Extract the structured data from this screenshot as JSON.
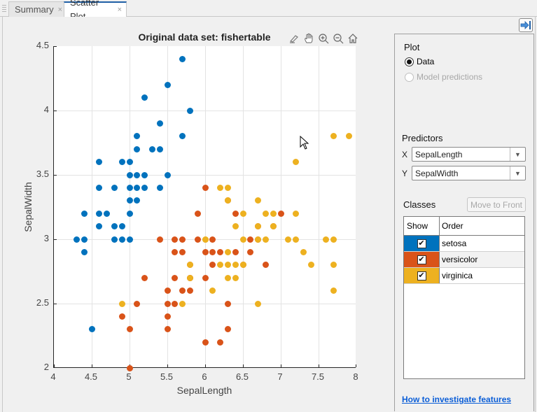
{
  "tabs": [
    {
      "label": "Summary",
      "active": false,
      "close": "×"
    },
    {
      "label": "Scatter Plot",
      "active": true,
      "close": "×"
    }
  ],
  "plot": {
    "title": "Original data set: fishertable",
    "toolbar": [
      "brush-icon",
      "pan-icon",
      "zoom-in-icon",
      "zoom-out-icon",
      "home-icon"
    ]
  },
  "panel": {
    "plot_section": {
      "title": "Plot",
      "options": [
        {
          "label": "Data",
          "selected": true,
          "enabled": true
        },
        {
          "label": "Model predictions",
          "selected": false,
          "enabled": false
        }
      ]
    },
    "predictors": {
      "title": "Predictors",
      "x_label": "X",
      "x_value": "SepalLength",
      "y_label": "Y",
      "y_value": "SepalWidth"
    },
    "classes": {
      "title": "Classes",
      "move_to_front": "Move to Front",
      "col_show": "Show",
      "col_order": "Order",
      "rows": [
        {
          "name": "setosa",
          "color": "#0072BD",
          "checked": true,
          "check": "✔"
        },
        {
          "name": "versicolor",
          "color": "#D95319",
          "checked": true,
          "check": "✔"
        },
        {
          "name": "virginica",
          "color": "#EDB120",
          "checked": true,
          "check": "✔"
        }
      ]
    },
    "help_link": "How to investigate features"
  },
  "chart_data": {
    "type": "scatter",
    "title": "Original data set: fishertable",
    "xlabel": "SepalLength",
    "ylabel": "SepalWidth",
    "xlim": [
      4,
      8
    ],
    "ylim": [
      2,
      4.5
    ],
    "xticks": [
      "4",
      "4.5",
      "5",
      "5.5",
      "6",
      "6.5",
      "7",
      "7.5",
      "8"
    ],
    "yticks": [
      "2",
      "2.5",
      "3",
      "3.5",
      "4",
      "4.5"
    ],
    "grid": true,
    "legend": "none (class table in side panel)",
    "series": [
      {
        "name": "setosa",
        "color": "#0072BD",
        "points": [
          [
            5.7,
            4.4
          ],
          [
            5.5,
            4.2
          ],
          [
            5.2,
            4.1
          ],
          [
            5.8,
            4.0
          ],
          [
            5.4,
            3.9
          ],
          [
            5.7,
            3.8
          ],
          [
            5.1,
            3.8
          ],
          [
            5.1,
            3.7
          ],
          [
            5.3,
            3.7
          ],
          [
            5.4,
            3.7
          ],
          [
            4.6,
            3.6
          ],
          [
            5.0,
            3.6
          ],
          [
            4.9,
            3.6
          ],
          [
            5.0,
            3.5
          ],
          [
            5.2,
            3.5
          ],
          [
            5.1,
            3.5
          ],
          [
            5.5,
            3.5
          ],
          [
            4.6,
            3.4
          ],
          [
            4.8,
            3.4
          ],
          [
            5.0,
            3.4
          ],
          [
            5.1,
            3.4
          ],
          [
            5.2,
            3.4
          ],
          [
            5.4,
            3.4
          ],
          [
            5.0,
            3.3
          ],
          [
            5.1,
            3.3
          ],
          [
            4.4,
            3.2
          ],
          [
            4.6,
            3.2
          ],
          [
            4.7,
            3.2
          ],
          [
            5.0,
            3.2
          ],
          [
            4.6,
            3.1
          ],
          [
            4.8,
            3.1
          ],
          [
            4.9,
            3.1
          ],
          [
            4.3,
            3.0
          ],
          [
            4.4,
            3.0
          ],
          [
            4.8,
            3.0
          ],
          [
            4.9,
            3.0
          ],
          [
            5.0,
            3.0
          ],
          [
            4.4,
            2.9
          ],
          [
            4.5,
            2.3
          ]
        ]
      },
      {
        "name": "versicolor",
        "color": "#D95319",
        "points": [
          [
            6.0,
            3.4
          ],
          [
            6.3,
            3.3
          ],
          [
            5.9,
            3.2
          ],
          [
            6.4,
            3.2
          ],
          [
            7.0,
            3.2
          ],
          [
            6.7,
            3.1
          ],
          [
            6.9,
            3.1
          ],
          [
            5.4,
            3.0
          ],
          [
            5.6,
            3.0
          ],
          [
            5.7,
            3.0
          ],
          [
            5.9,
            3.0
          ],
          [
            6.1,
            3.0
          ],
          [
            6.6,
            3.0
          ],
          [
            6.7,
            3.0
          ],
          [
            5.6,
            2.9
          ],
          [
            5.7,
            2.9
          ],
          [
            6.0,
            2.9
          ],
          [
            6.1,
            2.9
          ],
          [
            6.2,
            2.9
          ],
          [
            6.4,
            2.9
          ],
          [
            6.6,
            2.9
          ],
          [
            5.8,
            2.7
          ],
          [
            5.8,
            2.8
          ],
          [
            6.1,
            2.8
          ],
          [
            6.5,
            2.8
          ],
          [
            6.8,
            2.8
          ],
          [
            5.2,
            2.7
          ],
          [
            5.6,
            2.7
          ],
          [
            5.8,
            2.7
          ],
          [
            6.0,
            2.7
          ],
          [
            5.5,
            2.6
          ],
          [
            5.7,
            2.6
          ],
          [
            5.8,
            2.6
          ],
          [
            5.5,
            2.5
          ],
          [
            5.6,
            2.5
          ],
          [
            6.3,
            2.5
          ],
          [
            4.9,
            2.4
          ],
          [
            5.5,
            2.4
          ],
          [
            5.5,
            2.3
          ],
          [
            5.0,
            2.3
          ],
          [
            6.3,
            2.3
          ],
          [
            6.0,
            2.2
          ],
          [
            6.2,
            2.2
          ],
          [
            5.0,
            2.0
          ],
          [
            5.1,
            2.5
          ]
        ]
      },
      {
        "name": "virginica",
        "color": "#EDB120",
        "points": [
          [
            7.7,
            3.8
          ],
          [
            7.9,
            3.8
          ],
          [
            7.2,
            3.6
          ],
          [
            6.2,
            3.4
          ],
          [
            6.3,
            3.4
          ],
          [
            6.3,
            3.3
          ],
          [
            6.7,
            3.3
          ],
          [
            6.5,
            3.2
          ],
          [
            6.8,
            3.2
          ],
          [
            6.9,
            3.2
          ],
          [
            7.2,
            3.2
          ],
          [
            6.4,
            3.1
          ],
          [
            6.7,
            3.1
          ],
          [
            6.9,
            3.1
          ],
          [
            6.0,
            3.0
          ],
          [
            6.5,
            3.0
          ],
          [
            6.7,
            3.0
          ],
          [
            6.8,
            3.0
          ],
          [
            7.1,
            3.0
          ],
          [
            7.2,
            3.0
          ],
          [
            7.6,
            3.0
          ],
          [
            7.7,
            3.0
          ],
          [
            6.3,
            2.9
          ],
          [
            7.3,
            2.9
          ],
          [
            5.8,
            2.8
          ],
          [
            6.2,
            2.8
          ],
          [
            6.3,
            2.8
          ],
          [
            6.4,
            2.8
          ],
          [
            6.5,
            2.8
          ],
          [
            7.4,
            2.8
          ],
          [
            7.7,
            2.8
          ],
          [
            6.3,
            2.7
          ],
          [
            5.8,
            2.7
          ],
          [
            6.4,
            2.7
          ],
          [
            6.1,
            2.6
          ],
          [
            7.7,
            2.6
          ],
          [
            4.9,
            2.5
          ],
          [
            5.7,
            2.5
          ],
          [
            6.7,
            2.5
          ],
          [
            6.0,
            3.0
          ]
        ]
      }
    ]
  }
}
